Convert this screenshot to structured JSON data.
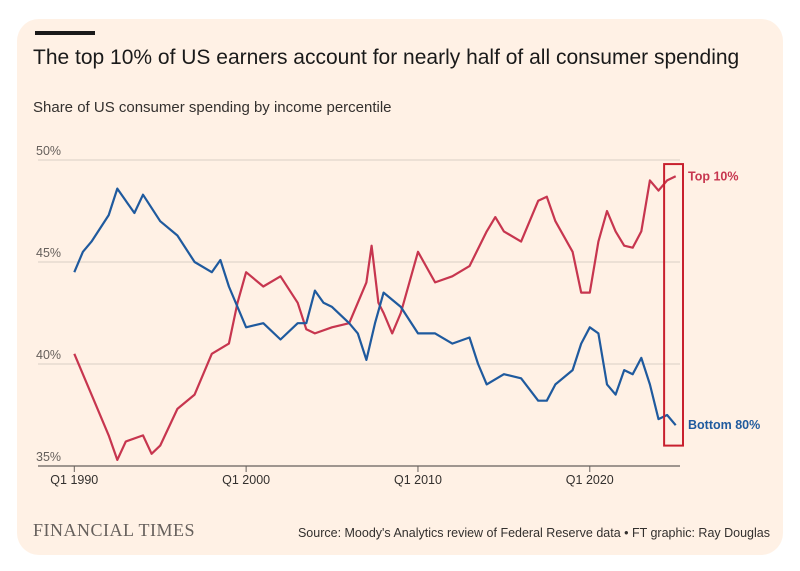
{
  "header": {
    "title": "The top 10% of US earners account for nearly half of all consumer spending",
    "subtitle": "Share of US consumer spending by income percentile"
  },
  "footer": {
    "brand": "FINANCIAL TIMES",
    "source": "Source: Moody's Analytics review of Federal Reserve data • FT graphic: Ray Douglas"
  },
  "colors": {
    "background": "#fff1e5",
    "grid": "#d9cec5",
    "top10": "#c7364f",
    "bottom80": "#1f5a9e",
    "highlight": "#c8202e"
  },
  "chart_data": {
    "type": "line",
    "title": "The top 10% of US earners account for nearly half of all consumer spending",
    "subtitle": "Share of US consumer spending by income percentile",
    "x_range": [
      1989.75,
      2025.25
    ],
    "ylim": [
      35,
      50
    ],
    "y_ticks": [
      35,
      40,
      45,
      50
    ],
    "y_tick_labels": [
      "35%",
      "40%",
      "45%",
      "50%"
    ],
    "x_ticks": [
      1990,
      2000,
      2010,
      2020
    ],
    "x_tick_labels": [
      "Q1 1990",
      "Q1 2000",
      "Q1 2010",
      "Q1 2020"
    ],
    "grid": "horizontal",
    "series": [
      {
        "name": "Top 10%",
        "color": "#c7364f",
        "points": [
          [
            1990,
            40.5
          ],
          [
            1991,
            38.5
          ],
          [
            1992,
            36.5
          ],
          [
            1992.5,
            35.3
          ],
          [
            1993,
            36.2
          ],
          [
            1994,
            36.5
          ],
          [
            1994.5,
            35.6
          ],
          [
            1995,
            36
          ],
          [
            1996,
            37.8
          ],
          [
            1997,
            38.5
          ],
          [
            1998,
            40.5
          ],
          [
            1999,
            41
          ],
          [
            1999.5,
            43
          ],
          [
            2000,
            44.5
          ],
          [
            2001,
            43.8
          ],
          [
            2002,
            44.3
          ],
          [
            2003,
            43
          ],
          [
            2003.5,
            41.7
          ],
          [
            2004,
            41.5
          ],
          [
            2005,
            41.8
          ],
          [
            2006,
            42
          ],
          [
            2007,
            44
          ],
          [
            2007.3,
            45.8
          ],
          [
            2007.7,
            43
          ],
          [
            2008,
            42.5
          ],
          [
            2008.5,
            41.5
          ],
          [
            2009,
            42.5
          ],
          [
            2010,
            45.5
          ],
          [
            2011,
            44
          ],
          [
            2012,
            44.3
          ],
          [
            2013,
            44.8
          ],
          [
            2014,
            46.5
          ],
          [
            2014.5,
            47.2
          ],
          [
            2015,
            46.5
          ],
          [
            2016,
            46
          ],
          [
            2017,
            48
          ],
          [
            2017.5,
            48.2
          ],
          [
            2018,
            47
          ],
          [
            2019,
            45.5
          ],
          [
            2019.5,
            43.5
          ],
          [
            2020,
            43.5
          ],
          [
            2020.5,
            46
          ],
          [
            2021,
            47.5
          ],
          [
            2021.5,
            46.5
          ],
          [
            2022,
            45.8
          ],
          [
            2022.5,
            45.7
          ],
          [
            2023,
            46.5
          ],
          [
            2023.5,
            49
          ],
          [
            2024,
            48.5
          ],
          [
            2024.5,
            49
          ],
          [
            2025,
            49.2
          ]
        ]
      },
      {
        "name": "Bottom 80%",
        "color": "#1f5a9e",
        "points": [
          [
            1990,
            44.5
          ],
          [
            1990.5,
            45.5
          ],
          [
            1991,
            46
          ],
          [
            1992,
            47.3
          ],
          [
            1992.5,
            48.6
          ],
          [
            1993,
            48
          ],
          [
            1993.5,
            47.4
          ],
          [
            1994,
            48.3
          ],
          [
            1995,
            47
          ],
          [
            1996,
            46.3
          ],
          [
            1997,
            45
          ],
          [
            1998,
            44.5
          ],
          [
            1998.5,
            45.1
          ],
          [
            1999,
            43.8
          ],
          [
            2000,
            41.8
          ],
          [
            2001,
            42
          ],
          [
            2002,
            41.2
          ],
          [
            2003,
            42
          ],
          [
            2003.5,
            42
          ],
          [
            2004,
            43.6
          ],
          [
            2004.5,
            43
          ],
          [
            2005,
            42.8
          ],
          [
            2006,
            42
          ],
          [
            2006.5,
            41.5
          ],
          [
            2007,
            40.2
          ],
          [
            2007.5,
            42
          ],
          [
            2008,
            43.5
          ],
          [
            2009,
            42.8
          ],
          [
            2010,
            41.5
          ],
          [
            2011,
            41.5
          ],
          [
            2012,
            41
          ],
          [
            2013,
            41.3
          ],
          [
            2013.5,
            40
          ],
          [
            2014,
            39
          ],
          [
            2015,
            39.5
          ],
          [
            2016,
            39.3
          ],
          [
            2017,
            38.2
          ],
          [
            2017.5,
            38.2
          ],
          [
            2018,
            39
          ],
          [
            2019,
            39.7
          ],
          [
            2019.5,
            41
          ],
          [
            2020,
            41.8
          ],
          [
            2020.5,
            41.5
          ],
          [
            2021,
            39
          ],
          [
            2021.5,
            38.5
          ],
          [
            2022,
            39.7
          ],
          [
            2022.5,
            39.5
          ],
          [
            2023,
            40.3
          ],
          [
            2023.5,
            39
          ],
          [
            2024,
            37.3
          ],
          [
            2024.5,
            37.5
          ],
          [
            2025,
            37
          ]
        ]
      }
    ],
    "annotations": [
      {
        "text": "Top 10%",
        "series": "Top 10%"
      },
      {
        "text": "Bottom 80%",
        "series": "Bottom 80%"
      }
    ],
    "highlight_box": {
      "x_from": 2024.5,
      "x_to": 2025.25,
      "y_from": 36,
      "y_to": 49.8
    }
  }
}
